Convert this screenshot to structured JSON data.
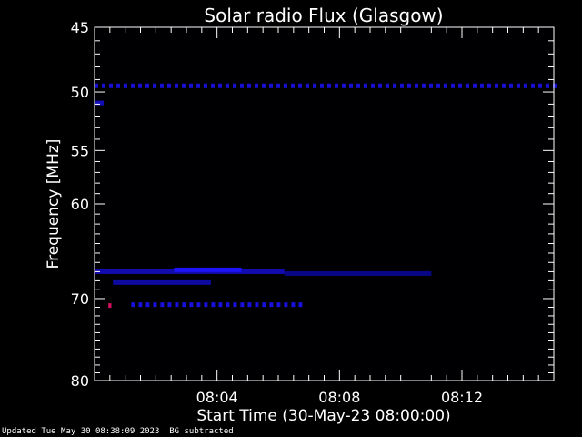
{
  "chart_data": {
    "type": "heatmap",
    "title": "Solar radio Flux (Glasgow)",
    "xlabel": "Start Time (30-May-23 08:00:00)",
    "ylabel": "Frequency [MHz]",
    "x_unit": "minutes after 08:00:00",
    "xlim": [
      0,
      15
    ],
    "ylim": [
      45,
      80
    ],
    "y_scale": "log",
    "y_inverted": true,
    "x_ticks": [
      {
        "value": 4,
        "label": "08:04"
      },
      {
        "value": 8,
        "label": "08:08"
      },
      {
        "value": 12,
        "label": "08:12"
      }
    ],
    "y_ticks": [
      {
        "value": 45,
        "label": "45"
      },
      {
        "value": 50,
        "label": "50"
      },
      {
        "value": 55,
        "label": "55"
      },
      {
        "value": 60,
        "label": "60"
      },
      {
        "value": 70,
        "label": "70"
      },
      {
        "value": 80,
        "label": "80"
      }
    ],
    "colormap": [
      "#000000",
      "#000040",
      "#0000ff",
      "#ff0000"
    ],
    "features": [
      {
        "name": "band-49.5",
        "t0": 0.0,
        "t1": 15.0,
        "f": 49.5,
        "intensity": 0.75,
        "style": "dashed"
      },
      {
        "name": "band-67",
        "t0": 0.0,
        "t1": 6.2,
        "f": 67.0,
        "intensity": 0.55
      },
      {
        "name": "burst-67",
        "t0": 2.6,
        "t1": 4.8,
        "f": 66.8,
        "intensity": 0.95
      },
      {
        "name": "band-67-faint",
        "t0": 6.2,
        "t1": 11.0,
        "f": 67.2,
        "intensity": 0.3
      },
      {
        "name": "band-68",
        "t0": 0.6,
        "t1": 3.8,
        "f": 68.2,
        "intensity": 0.45
      },
      {
        "name": "band-70.7",
        "t0": 1.2,
        "t1": 6.7,
        "f": 70.7,
        "intensity": 0.8,
        "style": "dashed"
      },
      {
        "name": "spot-70.7",
        "t0": 0.45,
        "t1": 0.55,
        "f": 70.8,
        "intensity": 1.0
      },
      {
        "name": "band-51",
        "t0": 0.0,
        "t1": 0.3,
        "f": 50.9,
        "intensity": 0.6
      }
    ]
  },
  "footer": {
    "updated": "Updated Tue May 30 08:38:09 2023",
    "note": "BG subtracted"
  },
  "colors": {
    "background": "#000000",
    "axes": "#ffffff"
  }
}
